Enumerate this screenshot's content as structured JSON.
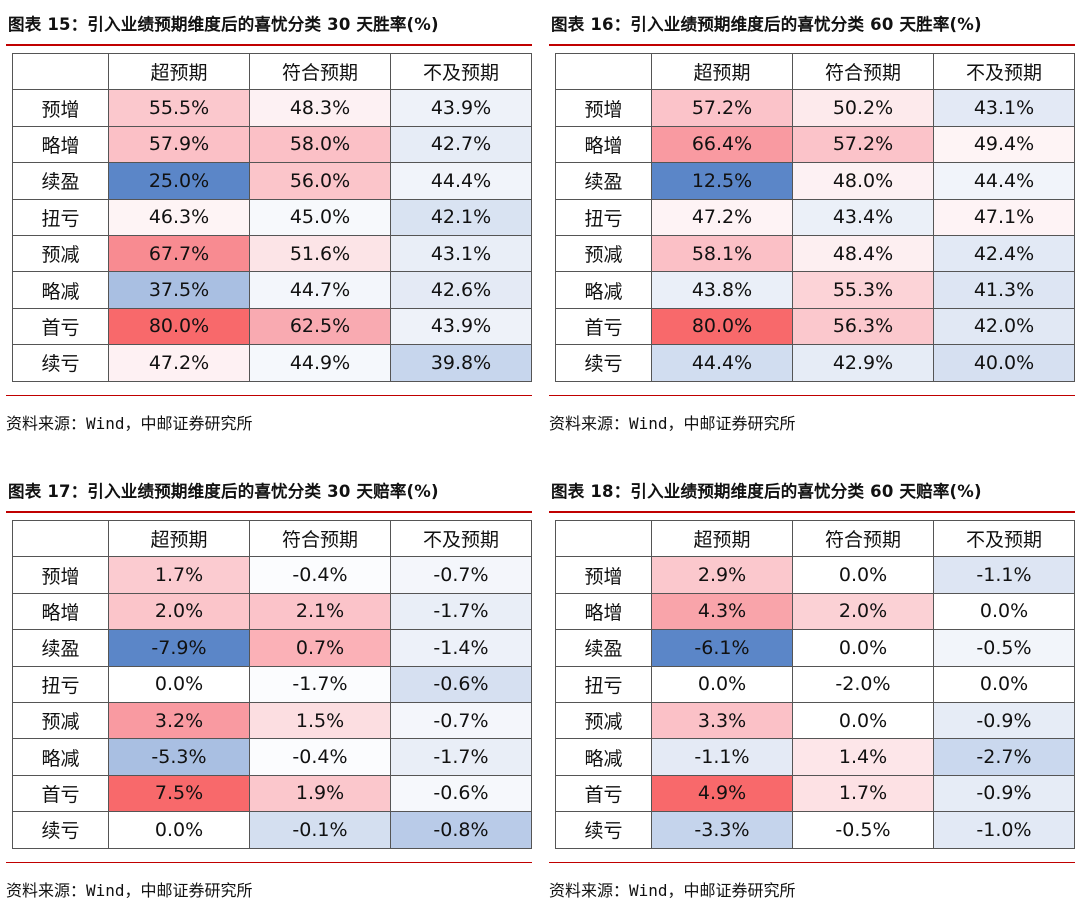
{
  "tables": [
    {
      "title": "图表 15：引入业绩预期维度后的喜忧分类 30 天胜率(%)",
      "columns": [
        "超预期",
        "符合预期",
        "不及预期"
      ],
      "rows": [
        {
          "label": "预增",
          "values": [
            "55.5%",
            "48.3%",
            "43.9%"
          ],
          "colors": [
            "#fbc8cd",
            "#fdf1f3",
            "#eef2f9"
          ]
        },
        {
          "label": "略增",
          "values": [
            "57.9%",
            "58.0%",
            "42.7%"
          ],
          "colors": [
            "#fbc0c6",
            "#fbc0c6",
            "#e6ecf6"
          ]
        },
        {
          "label": "续盈",
          "values": [
            "25.0%",
            "56.0%",
            "44.4%"
          ],
          "colors": [
            "#5b86c8",
            "#fbc5ca",
            "#f1f4fa"
          ]
        },
        {
          "label": "扭亏",
          "values": [
            "46.3%",
            "45.0%",
            "42.1%"
          ],
          "colors": [
            "#fef4f5",
            "#f7f9fc",
            "#d9e3f2"
          ]
        },
        {
          "label": "预减",
          "values": [
            "67.7%",
            "51.6%",
            "43.1%"
          ],
          "colors": [
            "#f88b91",
            "#fce4e7",
            "#e9eef7"
          ]
        },
        {
          "label": "略减",
          "values": [
            "37.5%",
            "44.7%",
            "42.6%"
          ],
          "colors": [
            "#a9bfe2",
            "#f3f6fb",
            "#e4eaf5"
          ]
        },
        {
          "label": "首亏",
          "values": [
            "80.0%",
            "62.5%",
            "43.9%"
          ],
          "colors": [
            "#f8696b",
            "#f9aab1",
            "#eef2f9"
          ]
        },
        {
          "label": "续亏",
          "values": [
            "47.2%",
            "44.9%",
            "39.8%"
          ],
          "colors": [
            "#fef1f3",
            "#f5f8fc",
            "#c7d6ed"
          ]
        }
      ],
      "source": "资料来源：Wind，中邮证券研究所"
    },
    {
      "title": "图表 16：引入业绩预期维度后的喜忧分类 60 天胜率(%)",
      "columns": [
        "超预期",
        "符合预期",
        "不及预期"
      ],
      "rows": [
        {
          "label": "预增",
          "values": [
            "57.2%",
            "50.2%",
            "43.1%"
          ],
          "colors": [
            "#fbc3c9",
            "#fdeaec",
            "#e3e9f5"
          ]
        },
        {
          "label": "略增",
          "values": [
            "66.4%",
            "57.2%",
            "49.4%"
          ],
          "colors": [
            "#f99aa1",
            "#fbc3c9",
            "#fef4f5"
          ]
        },
        {
          "label": "续盈",
          "values": [
            "12.5%",
            "48.0%",
            "44.4%"
          ],
          "colors": [
            "#5b86c8",
            "#fdf1f3",
            "#f1f4fa"
          ]
        },
        {
          "label": "扭亏",
          "values": [
            "47.2%",
            "43.4%",
            "47.1%"
          ],
          "colors": [
            "#fef3f5",
            "#ebf0f8",
            "#fef3f5"
          ]
        },
        {
          "label": "预减",
          "values": [
            "58.1%",
            "48.4%",
            "42.4%"
          ],
          "colors": [
            "#fbc0c6",
            "#fdeff1",
            "#e2e9f5"
          ]
        },
        {
          "label": "略减",
          "values": [
            "43.8%",
            "55.3%",
            "41.3%"
          ],
          "colors": [
            "#eaeff8",
            "#fcd3d7",
            "#dde5f3"
          ]
        },
        {
          "label": "首亏",
          "values": [
            "80.0%",
            "56.3%",
            "42.0%"
          ],
          "colors": [
            "#f8696b",
            "#fbc8cd",
            "#e1e8f4"
          ]
        },
        {
          "label": "续亏",
          "values": [
            "44.4%",
            "42.9%",
            "40.0%"
          ],
          "colors": [
            "#d1ddf0",
            "#e6ecf6",
            "#d6e0f1"
          ]
        }
      ],
      "source": "资料来源：Wind，中邮证券研究所"
    },
    {
      "title": "图表 17：引入业绩预期维度后的喜忧分类 30 天赔率(%)",
      "columns": [
        "超预期",
        "符合预期",
        "不及预期"
      ],
      "rows": [
        {
          "label": "预增",
          "values": [
            "1.7%",
            "-0.4%",
            "-0.7%"
          ],
          "colors": [
            "#fbcbd0",
            "#fbfcfe",
            "#f4f6fb"
          ]
        },
        {
          "label": "略增",
          "values": [
            "2.0%",
            "2.1%",
            "-1.7%"
          ],
          "colors": [
            "#fbc5ca",
            "#fbc3c9",
            "#e9eef7"
          ]
        },
        {
          "label": "续盈",
          "values": [
            "-7.9%",
            "0.7%",
            "-1.4%"
          ],
          "colors": [
            "#5b86c8",
            "#fbb1b7",
            "#edf1f9"
          ]
        },
        {
          "label": "扭亏",
          "values": [
            "0.0%",
            "-1.7%",
            "-0.6%"
          ],
          "colors": [
            "#ffffff",
            "#fbfcfe",
            "#d6e0f1"
          ]
        },
        {
          "label": "预减",
          "values": [
            "3.2%",
            "1.5%",
            "-0.7%"
          ],
          "colors": [
            "#f99aa1",
            "#fcdee1",
            "#f4f6fb"
          ]
        },
        {
          "label": "略减",
          "values": [
            "-5.3%",
            "-0.4%",
            "-1.7%"
          ],
          "colors": [
            "#a9bfe2",
            "#fbfcfe",
            "#e9eef7"
          ]
        },
        {
          "label": "首亏",
          "values": [
            "7.5%",
            "1.9%",
            "-0.6%"
          ],
          "colors": [
            "#f8696b",
            "#fbc7cc",
            "#f6f8fc"
          ]
        },
        {
          "label": "续亏",
          "values": [
            "0.0%",
            "-0.1%",
            "-0.8%"
          ],
          "colors": [
            "#ffffff",
            "#d4dff0",
            "#b9cbe8"
          ]
        }
      ],
      "source": "资料来源：Wind，中邮证券研究所"
    },
    {
      "title": "图表 18：引入业绩预期维度后的喜忧分类 60 天赔率(%)",
      "columns": [
        "超预期",
        "符合预期",
        "不及预期"
      ],
      "rows": [
        {
          "label": "预增",
          "values": [
            "2.9%",
            "0.0%",
            "-1.1%"
          ],
          "colors": [
            "#fbc8cd",
            "#ffffff",
            "#dde5f3"
          ]
        },
        {
          "label": "略增",
          "values": [
            "4.3%",
            "2.0%",
            "0.0%"
          ],
          "colors": [
            "#f9a4aa",
            "#fbd1d5",
            "#ffffff"
          ]
        },
        {
          "label": "续盈",
          "values": [
            "-6.1%",
            "0.0%",
            "-0.5%"
          ],
          "colors": [
            "#5b86c8",
            "#ffffff",
            "#f2f5fa"
          ]
        },
        {
          "label": "扭亏",
          "values": [
            "0.0%",
            "-2.0%",
            "0.0%"
          ],
          "colors": [
            "#ffffff",
            "#ffffff",
            "#ffffff"
          ]
        },
        {
          "label": "预减",
          "values": [
            "3.3%",
            "0.0%",
            "-0.9%"
          ],
          "colors": [
            "#fbc1c7",
            "#ffffff",
            "#e6ecf6"
          ]
        },
        {
          "label": "略减",
          "values": [
            "-1.1%",
            "1.4%",
            "-2.7%"
          ],
          "colors": [
            "#e4eaf5",
            "#fde6e9",
            "#cad8ee"
          ]
        },
        {
          "label": "首亏",
          "values": [
            "4.9%",
            "1.7%",
            "-0.9%"
          ],
          "colors": [
            "#f8696b",
            "#fde1e4",
            "#e6ecf6"
          ]
        },
        {
          "label": "续亏",
          "values": [
            "-3.3%",
            "-0.5%",
            "-1.0%"
          ],
          "colors": [
            "#c5d4ec",
            "#ffffff",
            "#e2e9f5"
          ]
        }
      ],
      "source": "资料来源：Wind，中邮证券研究所"
    }
  ]
}
